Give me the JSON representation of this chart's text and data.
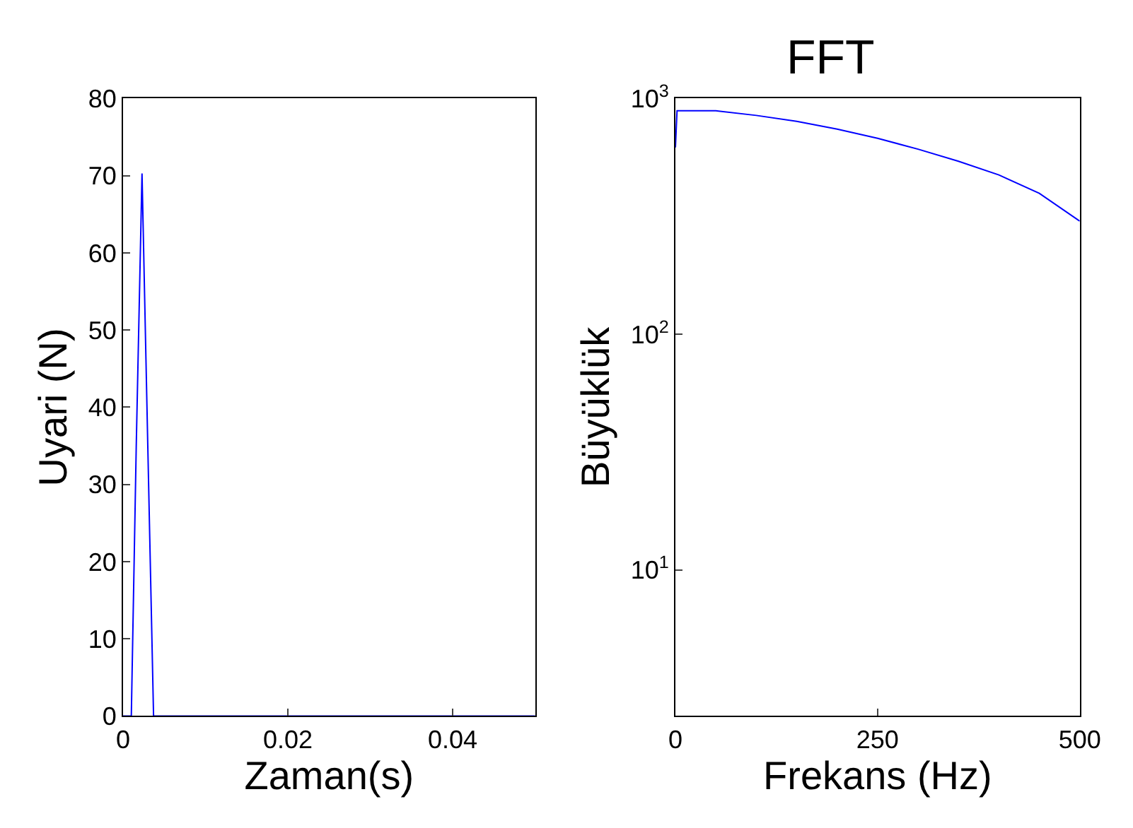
{
  "chart_data": [
    {
      "type": "line",
      "xlabel": "Zaman(s)",
      "ylabel": "Uyari (N)",
      "x": [
        0,
        0.001,
        0.0016,
        0.0023,
        0.003,
        0.0037,
        0.0045,
        0.01,
        0.02,
        0.03,
        0.04,
        0.05
      ],
      "series": [
        {
          "color": "#0000ff",
          "values": [
            0,
            0,
            35,
            70.3,
            35,
            0,
            0,
            0,
            0,
            0,
            0,
            0
          ]
        }
      ],
      "xlim": [
        0,
        0.05
      ],
      "xticks": [
        0,
        0.02,
        0.04
      ],
      "ylim": [
        0,
        80
      ],
      "yticks": [
        0,
        10,
        20,
        30,
        40,
        50,
        60,
        70,
        80
      ],
      "marker": "none",
      "line_style": "solid"
    },
    {
      "type": "line",
      "title": "FFT",
      "xlabel": "Frekans (Hz)",
      "ylabel": "Büyüklük",
      "x": [
        0,
        2,
        50,
        100,
        150,
        200,
        250,
        300,
        350,
        400,
        450,
        500
      ],
      "series": [
        {
          "color": "#0000ff",
          "values": [
            620,
            887,
            887,
            848,
            800,
            742,
            678,
            610,
            542,
            474,
            396,
            302
          ]
        }
      ],
      "log": "y",
      "xlim": [
        0,
        500
      ],
      "xticks": [
        0,
        250,
        500
      ],
      "ylim": [
        2.4,
        1000
      ],
      "yticks": [
        {
          "value": 10,
          "label": "10$^{1}$"
        },
        {
          "value": 100,
          "label": "10$^{2}$"
        },
        {
          "value": 1000,
          "label": "10$^{3}$"
        }
      ],
      "marker": "none",
      "line_style": "solid"
    }
  ]
}
